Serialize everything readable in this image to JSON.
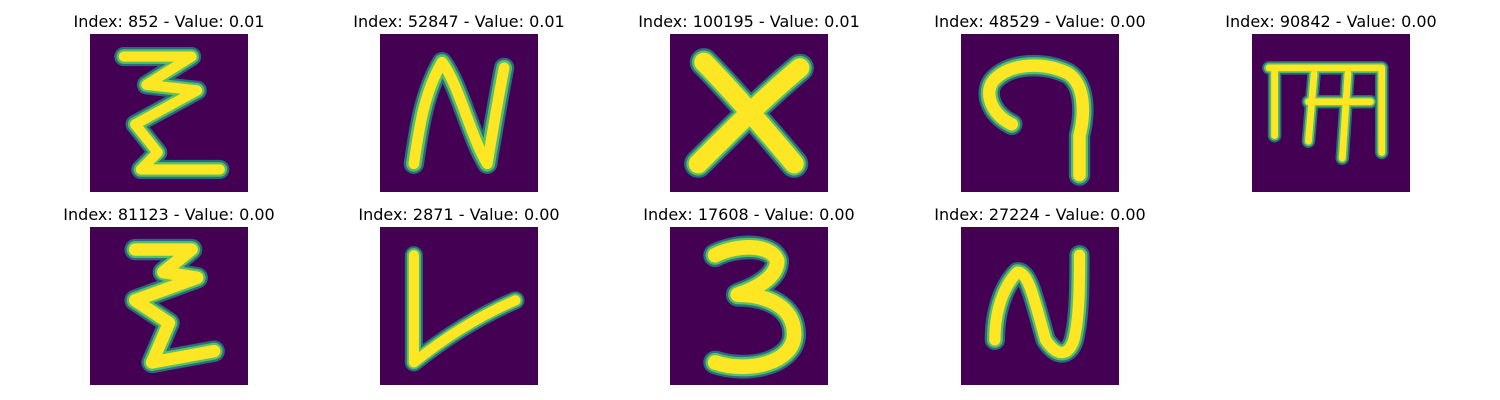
{
  "grid": {
    "cells": [
      {
        "title": "Index: 852 - Value: 0.01",
        "glyph": "zigzag-z-glyph"
      },
      {
        "title": "Index: 52847 - Value: 0.01",
        "glyph": "letter-n-glyph"
      },
      {
        "title": "Index: 100195 - Value: 0.01",
        "glyph": "letter-x-glyph"
      },
      {
        "title": "Index: 48529 - Value: 0.00",
        "glyph": "hook-curve-glyph"
      },
      {
        "title": "Index: 90842 - Value: 0.00",
        "glyph": "letter-m-glyph"
      },
      {
        "title": "Index: 81123 - Value: 0.00",
        "glyph": "zigzag-z-glyph"
      },
      {
        "title": "Index: 2871 - Value: 0.00",
        "glyph": "letter-l-glyph"
      },
      {
        "title": "Index: 17608 - Value: 0.00",
        "glyph": "digit-3-glyph"
      },
      {
        "title": "Index: 27224 - Value: 0.00",
        "glyph": "letter-n-glyph"
      }
    ]
  },
  "colors": {
    "background": "#440154",
    "stroke_core": "#fde725",
    "stroke_mid": "#5ec962",
    "stroke_edge": "#21908d"
  }
}
